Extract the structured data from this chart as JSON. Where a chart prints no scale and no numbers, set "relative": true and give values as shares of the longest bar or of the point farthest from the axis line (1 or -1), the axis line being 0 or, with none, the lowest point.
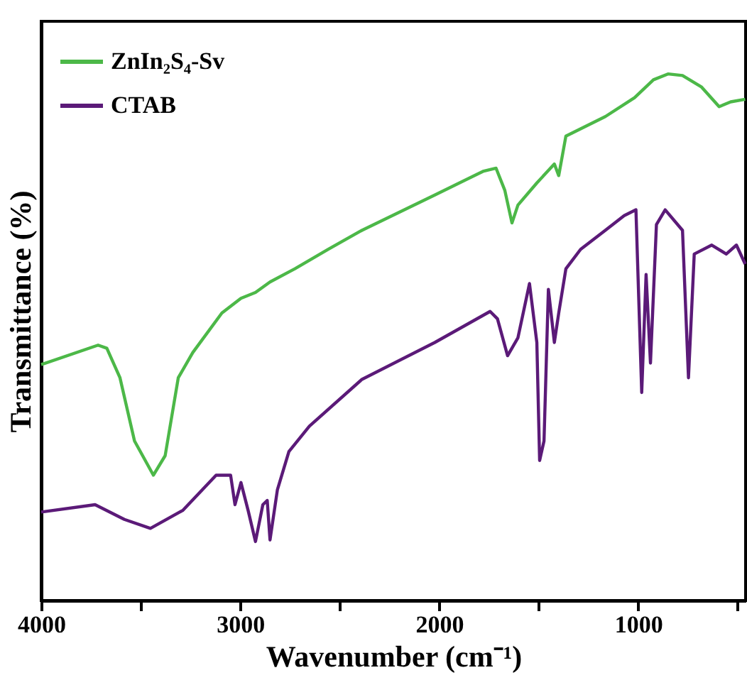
{
  "chart_data": {
    "type": "line",
    "relative": true,
    "xlabel": "Wavenumber (cm⁻¹)",
    "ylabel": "Transmittance (%)",
    "xlim": [
      4000,
      460
    ],
    "xticks": [
      4000,
      {
        "value": 3500,
        "label": null
      },
      3000,
      {
        "value": 2500,
        "label": null
      },
      2000,
      {
        "value": 1500,
        "label": null
      },
      1000,
      {
        "value": 500,
        "label": null
      }
    ],
    "legend": "top left",
    "grid": false,
    "marker": "none",
    "line_style": "solid",
    "series": [
      {
        "name": "ZnIn₂S₄-Sv",
        "color": "#4cb848",
        "x": [
          4000,
          3714,
          3670,
          3604,
          3531,
          3436,
          3377,
          3311,
          3238,
          3092,
          2996,
          2923,
          2850,
          2725,
          2557,
          2388,
          2022,
          1780,
          1714,
          1670,
          1634,
          1604,
          1509,
          1421,
          1399,
          1363,
          1165,
          1018,
          923,
          850,
          777,
          681,
          593,
          535,
          462
        ],
        "values": [
          0.448,
          0.485,
          0.479,
          0.423,
          0.303,
          0.238,
          0.275,
          0.423,
          0.471,
          0.546,
          0.574,
          0.585,
          0.605,
          0.63,
          0.667,
          0.703,
          0.77,
          0.815,
          0.821,
          0.779,
          0.717,
          0.751,
          0.793,
          0.829,
          0.807,
          0.882,
          0.919,
          0.955,
          0.989,
          1,
          0.997,
          0.975,
          0.938,
          0.947,
          0.952
        ]
      },
      {
        "name": "CTAB",
        "color": "#5b1a78",
        "x": [
          4000,
          3729,
          3582,
          3451,
          3289,
          3121,
          3048,
          3026,
          2996,
          2960,
          2923,
          2886,
          2864,
          2850,
          2813,
          2755,
          2652,
          2388,
          2022,
          1744,
          1707,
          1656,
          1604,
          1546,
          1509,
          1495,
          1473,
          1451,
          1421,
          1399,
          1363,
          1289,
          1165,
          1070,
          1011,
          982,
          960,
          938,
          908,
          864,
          777,
          747,
          718,
          630,
          557,
          506,
          462
        ],
        "values": [
          0.168,
          0.182,
          0.154,
          0.137,
          0.171,
          0.238,
          0.238,
          0.182,
          0.224,
          0.171,
          0.112,
          0.182,
          0.19,
          0.115,
          0.21,
          0.283,
          0.331,
          0.42,
          0.49,
          0.549,
          0.535,
          0.465,
          0.499,
          0.602,
          0.49,
          0.266,
          0.303,
          0.591,
          0.49,
          0.546,
          0.63,
          0.667,
          0.703,
          0.731,
          0.742,
          0.395,
          0.619,
          0.451,
          0.714,
          0.742,
          0.703,
          0.423,
          0.658,
          0.675,
          0.658,
          0.675,
          0.639
        ]
      }
    ]
  }
}
